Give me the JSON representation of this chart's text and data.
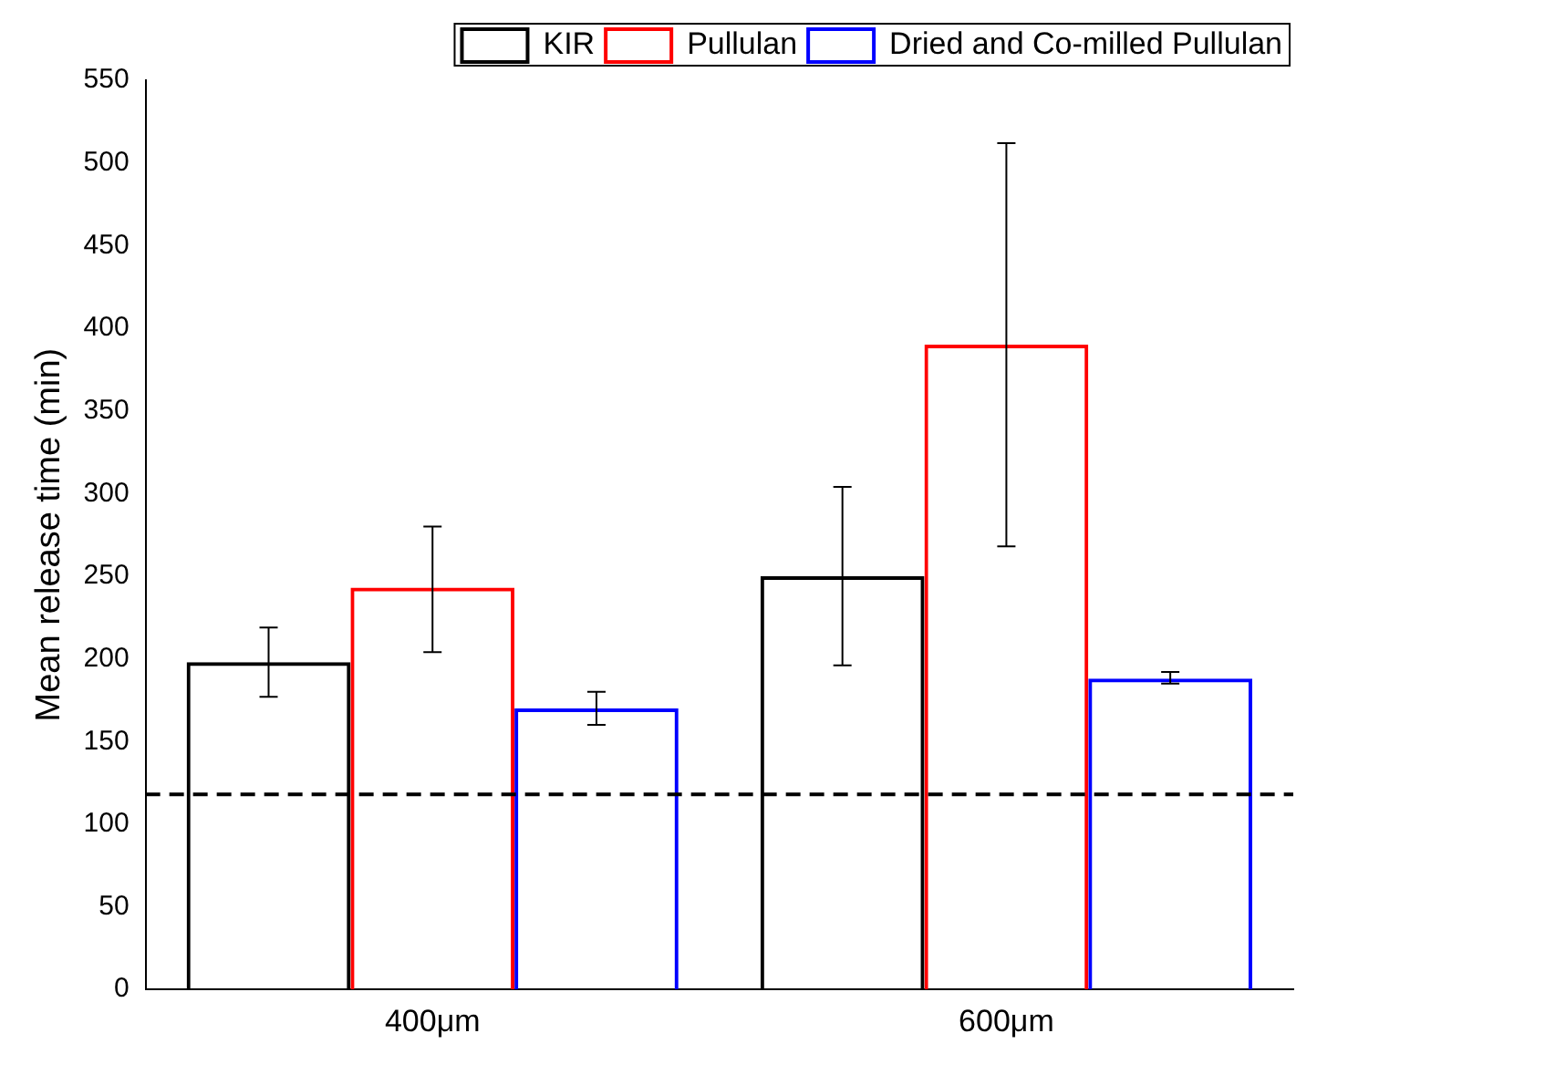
{
  "chart_data": {
    "type": "bar",
    "ylabel": "Mean release time (min)",
    "categories": [
      "400μm",
      "600μm"
    ],
    "series": [
      {
        "name": "KIR",
        "color": "#000000",
        "values": [
          198,
          250
        ],
        "errors": [
          [
            177,
            219
          ],
          [
            196,
            304
          ]
        ]
      },
      {
        "name": "Pullulan",
        "color": "#ff0000",
        "values": [
          243,
          390
        ],
        "errors": [
          [
            204,
            280
          ],
          [
            268,
            512
          ]
        ]
      },
      {
        "name": "Dried and Co-milled Pullulan",
        "color": "#0000ff",
        "values": [
          170,
          188
        ],
        "errors": [
          [
            160,
            180
          ],
          [
            185,
            192
          ]
        ]
      }
    ],
    "ylim": [
      0,
      550
    ],
    "yticks": [
      0,
      50,
      100,
      150,
      200,
      250,
      300,
      350,
      400,
      450,
      500,
      550
    ],
    "ref_lines": [
      {
        "axis": "y",
        "value": 118,
        "color": "#000000",
        "line_style": "dashed"
      }
    ],
    "grid": false,
    "legend": "top right"
  }
}
